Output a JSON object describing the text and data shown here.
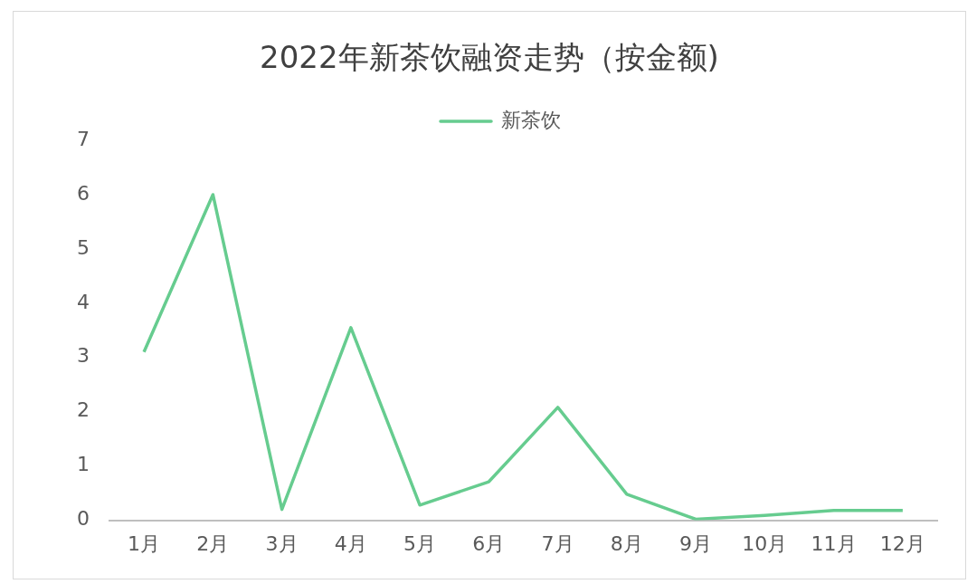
{
  "chart_data": {
    "type": "line",
    "title": "2022年新茶饮融资走势（按金额)",
    "categories": [
      "1月",
      "2月",
      "3月",
      "4月",
      "5月",
      "6月",
      "7月",
      "8月",
      "9月",
      "10月",
      "11月",
      "12月"
    ],
    "series": [
      {
        "name": "新茶饮",
        "color": "#66cc8f",
        "values": [
          3.1,
          6.0,
          0.2,
          3.55,
          0.28,
          0.71,
          2.08,
          0.48,
          0.02,
          0.09,
          0.18,
          0.18
        ]
      }
    ],
    "ylim": [
      0,
      7
    ],
    "yticks": [
      0,
      1,
      2,
      3,
      4,
      5,
      6,
      7
    ],
    "grid": false,
    "legend": "top",
    "marker": "none",
    "line_style": "solid"
  }
}
